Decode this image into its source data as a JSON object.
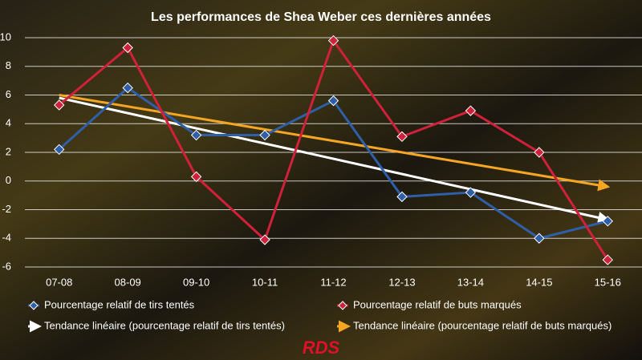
{
  "chart_data": {
    "type": "line",
    "title": "Les performances de Shea Weber ces dernières années",
    "categories": [
      "07-08",
      "08-09",
      "09-10",
      "10-11",
      "11-12",
      "12-13",
      "13-14",
      "14-15",
      "15-16"
    ],
    "series": [
      {
        "name": "Pourcentage relatif de tirs tentés",
        "color": "#2f5fa8",
        "values": [
          2.2,
          6.5,
          3.2,
          3.2,
          5.6,
          -1.1,
          -0.8,
          -4.0,
          -2.8
        ]
      },
      {
        "name": "Pourcentage relatif de buts marqués",
        "color": "#d0203a",
        "values": [
          5.3,
          9.3,
          0.3,
          -4.1,
          9.8,
          3.1,
          4.9,
          2.0,
          -5.5
        ]
      }
    ],
    "trendlines": [
      {
        "name": "Tendance linéaire (pourcentage relatif de tirs tentés)",
        "color": "#ffffff",
        "values": [
          5.8,
          -2.7
        ]
      },
      {
        "name": "Tendance linéaire (pourcentage relatif de buts marqués)",
        "color": "#f5a623",
        "values": [
          6.0,
          -0.4
        ]
      }
    ],
    "ylim": [
      -6,
      10
    ],
    "yticks": [
      -6,
      -4,
      -2,
      0,
      2,
      4,
      6,
      8,
      10
    ],
    "grid": true,
    "logo": "RDS"
  }
}
